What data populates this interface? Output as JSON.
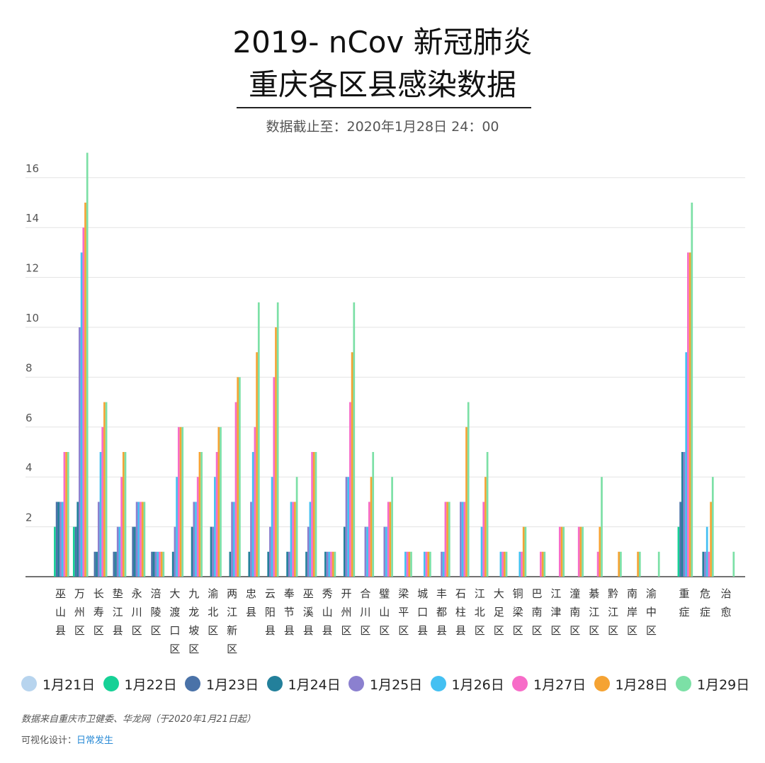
{
  "header": {
    "title_line1": "2019- nCov 新冠肺炎",
    "title_line2": "重庆各区县感染数据",
    "subtitle": "数据截止至：2020年1月28日 24：00"
  },
  "footer": {
    "source": "数据来自重庆市卫健委、华龙网（于2020年1月21日起）",
    "credit_label": "可视化设计：",
    "credit_name": "日常发生"
  },
  "chart_data": {
    "type": "bar",
    "ylim": [
      0,
      17
    ],
    "yticks": [
      2,
      4,
      6,
      8,
      10,
      12,
      14,
      16
    ],
    "grid": true,
    "legend_position": "bottom",
    "categories": [
      "巫山县",
      "万州区",
      "长寿区",
      "垫江县",
      "永川区",
      "涪陵区",
      "大渡口区",
      "九龙坡区",
      "渝北区",
      "两江新区",
      "忠县",
      "云阳县",
      "奉节县",
      "巫溪县",
      "秀山县",
      "开州区",
      "合川区",
      "璧山区",
      "梁平区",
      "城口县",
      "丰都县",
      "石柱县",
      "江北区",
      "大足区",
      "铜梁区",
      "巴南区",
      "江津区",
      "潼南区",
      "綦江区",
      "黔江区",
      "南岸区",
      "渝中区",
      "重症",
      "危症",
      "治愈"
    ],
    "series": [
      {
        "name": "1月21日",
        "color": "#b7d4ee",
        "values": [
          0,
          0,
          0,
          0,
          0,
          0,
          0,
          0,
          0,
          0,
          0,
          0,
          0,
          0,
          0,
          0,
          0,
          0,
          0,
          0,
          0,
          0,
          0,
          0,
          0,
          0,
          0,
          0,
          0,
          0,
          0,
          0,
          0,
          0,
          0
        ]
      },
      {
        "name": "1月22日",
        "color": "#16d196",
        "values": [
          2,
          2,
          0,
          0,
          0,
          0,
          0,
          0,
          0,
          0,
          0,
          0,
          0,
          0,
          0,
          0,
          0,
          0,
          0,
          0,
          0,
          0,
          0,
          0,
          0,
          0,
          0,
          0,
          0,
          0,
          0,
          0,
          2,
          0,
          0
        ]
      },
      {
        "name": "1月23日",
        "color": "#4a72a8",
        "values": [
          3,
          2,
          1,
          1,
          2,
          1,
          0,
          0,
          0,
          0,
          0,
          0,
          0,
          0,
          0,
          0,
          0,
          0,
          0,
          0,
          0,
          0,
          0,
          0,
          0,
          0,
          0,
          0,
          0,
          0,
          0,
          0,
          3,
          0,
          0
        ]
      },
      {
        "name": "1月24日",
        "color": "#23809b",
        "values": [
          3,
          3,
          1,
          1,
          2,
          1,
          1,
          2,
          2,
          1,
          1,
          1,
          1,
          1,
          1,
          2,
          0,
          0,
          0,
          0,
          0,
          0,
          0,
          0,
          0,
          0,
          0,
          0,
          0,
          0,
          0,
          0,
          5,
          1,
          0
        ]
      },
      {
        "name": "1月25日",
        "color": "#8b80cf",
        "values": [
          3,
          10,
          3,
          2,
          3,
          1,
          2,
          3,
          2,
          3,
          3,
          2,
          1,
          2,
          1,
          4,
          2,
          2,
          0,
          0,
          1,
          3,
          0,
          0,
          0,
          0,
          0,
          0,
          0,
          0,
          0,
          0,
          5,
          1,
          0
        ]
      },
      {
        "name": "1月26日",
        "color": "#44c0f2",
        "values": [
          3,
          13,
          5,
          2,
          3,
          1,
          4,
          3,
          4,
          3,
          5,
          4,
          3,
          3,
          1,
          4,
          2,
          2,
          1,
          1,
          1,
          3,
          2,
          1,
          1,
          0,
          0,
          0,
          0,
          0,
          0,
          0,
          9,
          2,
          0
        ]
      },
      {
        "name": "1月27日",
        "color": "#f76cc8",
        "values": [
          5,
          14,
          6,
          4,
          3,
          1,
          6,
          4,
          5,
          7,
          6,
          8,
          3,
          5,
          1,
          7,
          3,
          3,
          1,
          1,
          3,
          3,
          3,
          1,
          1,
          1,
          2,
          2,
          1,
          0,
          0,
          0,
          13,
          1,
          0
        ]
      },
      {
        "name": "1月28日",
        "color": "#f5a333",
        "values": [
          5,
          15,
          7,
          5,
          3,
          1,
          6,
          5,
          6,
          8,
          9,
          10,
          3,
          5,
          1,
          9,
          4,
          3,
          1,
          1,
          3,
          6,
          4,
          1,
          2,
          1,
          2,
          2,
          2,
          1,
          1,
          0,
          13,
          3,
          0
        ]
      },
      {
        "name": "1月29日",
        "color": "#7ce0a6",
        "values": [
          5,
          17,
          7,
          5,
          3,
          1,
          6,
          5,
          6,
          8,
          11,
          11,
          4,
          5,
          1,
          11,
          5,
          4,
          1,
          1,
          3,
          7,
          5,
          1,
          2,
          1,
          2,
          2,
          4,
          1,
          1,
          1,
          15,
          4,
          1
        ]
      }
    ]
  }
}
